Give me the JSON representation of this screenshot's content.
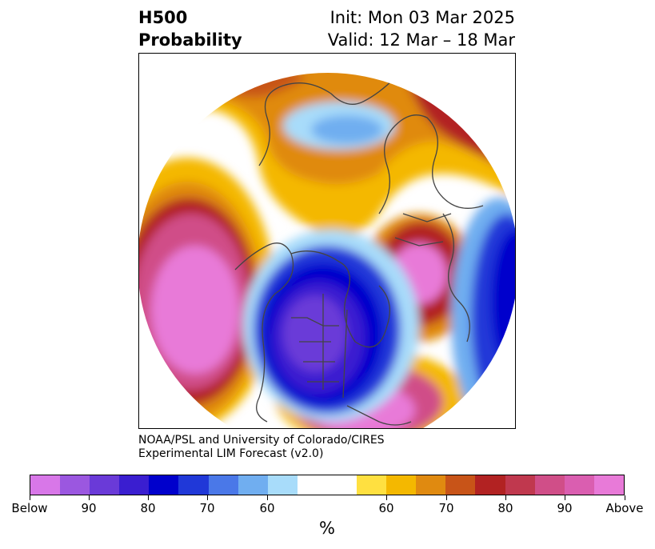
{
  "header": {
    "title_line1": "H500",
    "title_line2": "Probability",
    "init": "Init: Mon 03 Mar 2025",
    "valid": "Valid: 12 Mar – 18 Mar"
  },
  "credit": {
    "line1": "NOAA/PSL and University of Colorado/CIRES",
    "line2": "Experimental LIM Forecast (v2.0)"
  },
  "colorbar": {
    "colors": [
      "#d877e8",
      "#9b57e0",
      "#6a3ad8",
      "#3a1ed0",
      "#0000cc",
      "#2038d8",
      "#4a78e8",
      "#70aef0",
      "#a8dcfa",
      "#ffffff",
      "#ffe040",
      "#f4b800",
      "#e08a10",
      "#c85418",
      "#b22222",
      "#c0384e",
      "#d04e88",
      "#da5eb0",
      "#e87ad8"
    ],
    "tick_labels": [
      "Below",
      "90",
      "80",
      "70",
      "60",
      "60",
      "70",
      "80",
      "90",
      "Above"
    ],
    "unit": "%"
  },
  "map": {
    "projection": "north polar stereographic",
    "colors": {
      "pink_high": "#e87ad8",
      "magenta": "#d04e88",
      "dark_red": "#b22222",
      "orange_red": "#c85418",
      "orange": "#e08a10",
      "gold": "#f4b800",
      "yellow": "#ffe040",
      "light_blue": "#a8dcfa",
      "sky_blue": "#70aef0",
      "blue": "#2038d8",
      "deep_blue": "#0000cc",
      "indigo": "#3a1ed0",
      "purple": "#6a3ad8",
      "coast": "#444444"
    }
  }
}
